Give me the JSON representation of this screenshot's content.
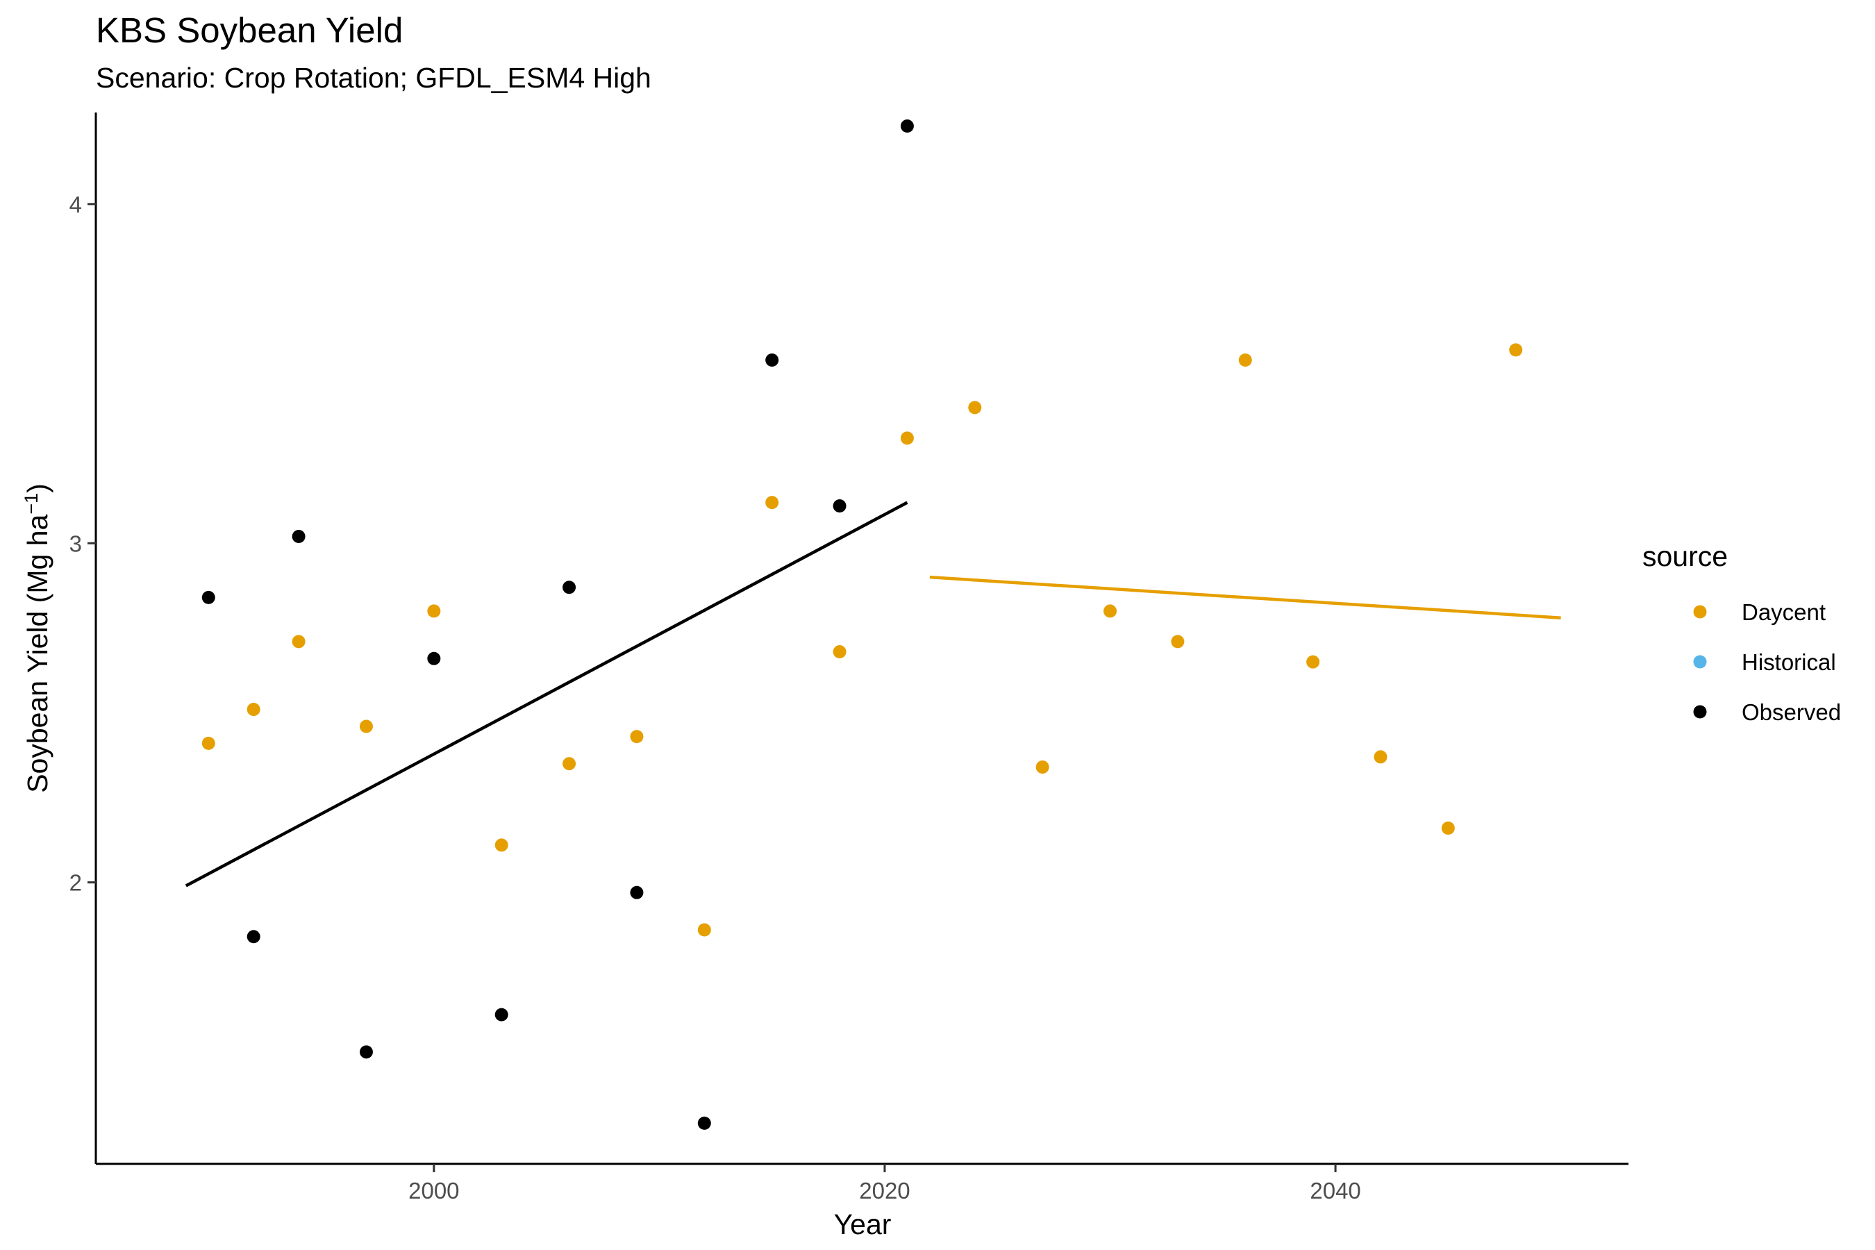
{
  "chart_data": {
    "type": "scatter",
    "title": "KBS Soybean Yield",
    "subtitle": "Scenario: Crop Rotation; GFDL_ESM4 High",
    "xlabel": "Year",
    "ylabel": "Soybean Yield (Mg ha",
    "ylabel_superscript": "−1",
    "ylabel_suffix": ")",
    "xlim": [
      1985,
      2053
    ],
    "ylim": [
      1.17,
      4.27
    ],
    "xticks": [
      2000,
      2020,
      2040
    ],
    "yticks": [
      2,
      3,
      4
    ],
    "grid": false,
    "legend": {
      "title": "source",
      "position": "right",
      "entries": [
        {
          "name": "Daycent",
          "color": "#E69F00"
        },
        {
          "name": "Historical",
          "color": "#56B4E9"
        },
        {
          "name": "Observed",
          "color": "#000000"
        }
      ]
    },
    "series": [
      {
        "name": "Daycent",
        "color": "#E69F00",
        "points": [
          {
            "x": 1990,
            "y": 2.41
          },
          {
            "x": 1992,
            "y": 2.51
          },
          {
            "x": 1994,
            "y": 2.71
          },
          {
            "x": 1997,
            "y": 2.46
          },
          {
            "x": 2000,
            "y": 2.8
          },
          {
            "x": 2003,
            "y": 2.11
          },
          {
            "x": 2006,
            "y": 2.35
          },
          {
            "x": 2009,
            "y": 2.43
          },
          {
            "x": 2012,
            "y": 1.86
          },
          {
            "x": 2015,
            "y": 3.12
          },
          {
            "x": 2018,
            "y": 2.68
          },
          {
            "x": 2021,
            "y": 3.31
          },
          {
            "x": 2024,
            "y": 3.4
          },
          {
            "x": 2027,
            "y": 2.34
          },
          {
            "x": 2030,
            "y": 2.8
          },
          {
            "x": 2033,
            "y": 2.71
          },
          {
            "x": 2036,
            "y": 3.54
          },
          {
            "x": 2039,
            "y": 2.65
          },
          {
            "x": 2042,
            "y": 2.37
          },
          {
            "x": 2045,
            "y": 2.16
          },
          {
            "x": 2048,
            "y": 3.57
          }
        ],
        "trend": [
          {
            "x": 2022,
            "y": 2.9
          },
          {
            "x": 2050,
            "y": 2.78
          }
        ]
      },
      {
        "name": "Observed",
        "color": "#000000",
        "points": [
          {
            "x": 1990,
            "y": 2.84
          },
          {
            "x": 1992,
            "y": 1.84
          },
          {
            "x": 1994,
            "y": 3.02
          },
          {
            "x": 1997,
            "y": 1.5
          },
          {
            "x": 2000,
            "y": 2.66
          },
          {
            "x": 2003,
            "y": 1.61
          },
          {
            "x": 2006,
            "y": 2.87
          },
          {
            "x": 2009,
            "y": 1.97
          },
          {
            "x": 2012,
            "y": 1.29
          },
          {
            "x": 2015,
            "y": 3.54
          },
          {
            "x": 2018,
            "y": 3.11
          },
          {
            "x": 2021,
            "y": 4.23
          }
        ],
        "trend": [
          {
            "x": 1989,
            "y": 1.99
          },
          {
            "x": 2021,
            "y": 3.12
          }
        ]
      }
    ]
  }
}
